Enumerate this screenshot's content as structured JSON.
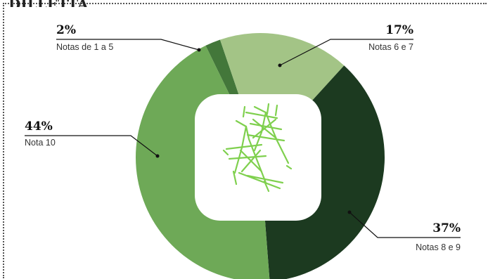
{
  "header": {
    "clipped_title": "DILLETTA"
  },
  "chart_data": {
    "type": "pie",
    "donut": true,
    "title": "",
    "slices": [
      {
        "value": 2,
        "percent_label": "2%",
        "label": "Notas de 1 a 5",
        "color": "#43773a"
      },
      {
        "value": 17,
        "percent_label": "17%",
        "label": "Notas 6 e 7",
        "color": "#a3c486"
      },
      {
        "value": 37,
        "percent_label": "37%",
        "label": "Notas 8 e 9",
        "color": "#1c3a20"
      },
      {
        "value": 44,
        "percent_label": "44%",
        "label": "Nota 10",
        "color": "#6ea957"
      }
    ]
  },
  "center_icon": {
    "name": "transmission-tower-icon",
    "color": "#7fd04e"
  }
}
